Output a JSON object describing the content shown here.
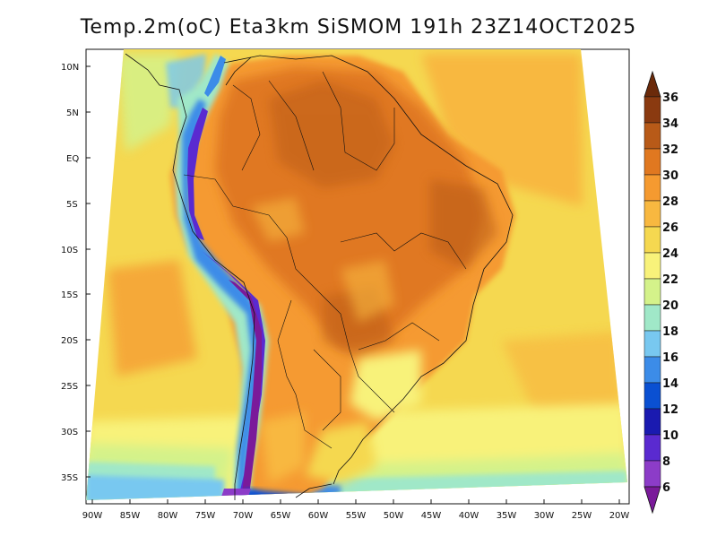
{
  "title": "Temp.2m(oC) Eta3km SiSMOM 191h 23Z14OCT2025",
  "variable": "Temp.2m",
  "units": "oC",
  "model": "Eta3km SiSMOM",
  "forecast_hour": "191h",
  "valid_time": "23Z14OCT2025",
  "region": "South America",
  "y_ticks": [
    "10N",
    "5N",
    "EQ",
    "5S",
    "10S",
    "15S",
    "20S",
    "25S",
    "30S",
    "35S"
  ],
  "x_ticks": [
    "90W",
    "85W",
    "80W",
    "75W",
    "70W",
    "65W",
    "60W",
    "55W",
    "50W",
    "45W",
    "40W",
    "35W",
    "30W",
    "25W",
    "20W"
  ],
  "colorbar": {
    "labels": [
      "36",
      "34",
      "32",
      "30",
      "28",
      "26",
      "24",
      "22",
      "20",
      "18",
      "16",
      "14",
      "12",
      "10",
      "8",
      "6"
    ],
    "colors": [
      "#6b2a0a",
      "#8a3a10",
      "#b85a18",
      "#e07820",
      "#f59a30",
      "#f8b840",
      "#f5d850",
      "#f8f27a",
      "#d4f28a",
      "#a0e8c8",
      "#78c8f0",
      "#3c8ce8",
      "#0a50d2",
      "#1a1ab0",
      "#5a2ad0",
      "#8c3cc8",
      "#7a1a9a"
    ]
  }
}
